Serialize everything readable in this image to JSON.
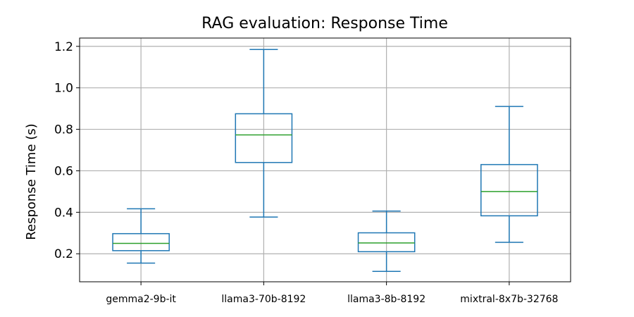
{
  "chart_data": {
    "type": "box",
    "title": "RAG evaluation: Response Time",
    "xlabel": "",
    "ylabel": "Response Time (s)",
    "ylim": [
      0.065,
      1.24
    ],
    "yticks": [
      0.2,
      0.4,
      0.6,
      0.8,
      1.0,
      1.2
    ],
    "ytick_labels": [
      "0.2",
      "0.4",
      "0.6",
      "0.8",
      "1.0",
      "1.2"
    ],
    "grid": true,
    "box_color": "#1f77b4",
    "median_color": "#2ca02c",
    "categories": [
      "gemma2-9b-it",
      "llama3-70b-8192",
      "llama3-8b-8192",
      "mixtral-8x7b-32768"
    ],
    "boxes": [
      {
        "category": "gemma2-9b-it",
        "whisker_low": 0.155,
        "q1": 0.215,
        "median": 0.25,
        "q3": 0.297,
        "whisker_high": 0.417
      },
      {
        "category": "llama3-70b-8192",
        "whisker_low": 0.377,
        "q1": 0.64,
        "median": 0.773,
        "q3": 0.875,
        "whisker_high": 1.185
      },
      {
        "category": "llama3-8b-8192",
        "whisker_low": 0.115,
        "q1": 0.21,
        "median": 0.252,
        "q3": 0.301,
        "whisker_high": 0.406
      },
      {
        "category": "mixtral-8x7b-32768",
        "whisker_low": 0.255,
        "q1": 0.383,
        "median": 0.5,
        "q3": 0.63,
        "whisker_high": 0.91
      }
    ]
  }
}
